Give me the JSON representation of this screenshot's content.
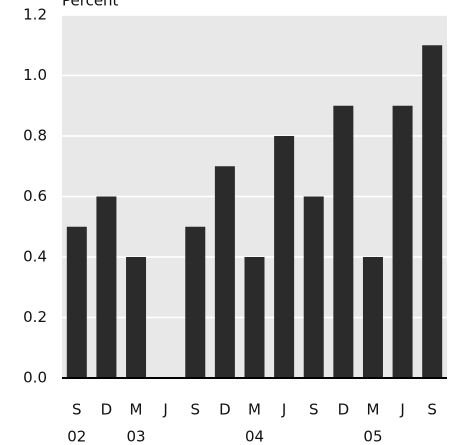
{
  "chart_data": {
    "type": "bar",
    "title": "Percent",
    "categories": [
      "S",
      "D",
      "M",
      "J",
      "S",
      "D",
      "M",
      "J",
      "S",
      "D",
      "M",
      "J",
      "S"
    ],
    "year_labels": [
      "02",
      null,
      "03",
      null,
      null,
      null,
      "04",
      null,
      null,
      null,
      "05",
      null,
      null
    ],
    "values": [
      0.5,
      0.6,
      0.4,
      0,
      0.5,
      0.7,
      0.4,
      0.8,
      0.6,
      0.9,
      0.4,
      0.9,
      1.1
    ],
    "color": "#2b2b2b",
    "ylim": [
      0,
      1.2
    ],
    "yticks": [
      {
        "value": 0,
        "label": "0.0"
      },
      {
        "value": 0.2,
        "label": "0.2"
      },
      {
        "value": 0.4,
        "label": "0.4"
      },
      {
        "value": 0.6,
        "label": "0.6"
      },
      {
        "value": 0.8,
        "label": "0.8"
      },
      {
        "value": 1,
        "label": "1.0"
      },
      {
        "value": 1.2,
        "label": "1.2"
      }
    ],
    "grid": true
  }
}
